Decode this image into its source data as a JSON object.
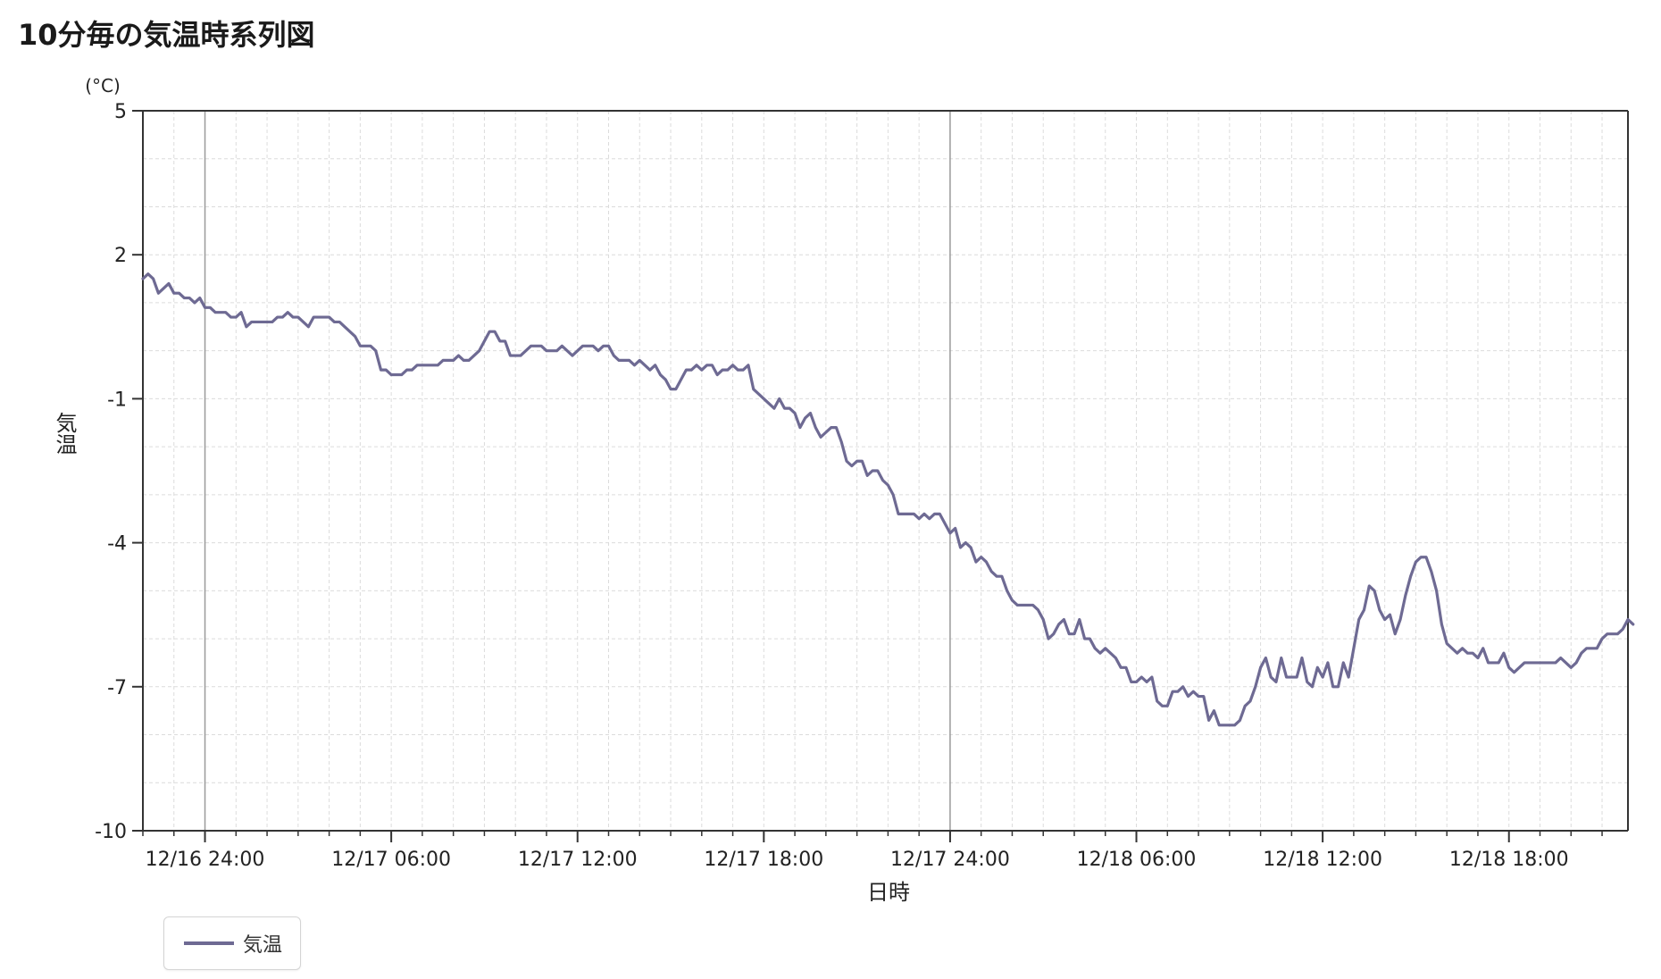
{
  "title": "10分毎の気温時系列図",
  "colors": {
    "line": "#6e6a93",
    "axis": "#333333",
    "grid_minor": "#dcdcdc",
    "grid_major": "#9a9a9a"
  },
  "chart_data": {
    "type": "line",
    "title": "10分毎の気温時系列図",
    "xlabel": "日時",
    "ylabel": "気温",
    "yunit": "(°C)",
    "ylim": [
      -10,
      5
    ],
    "yticks": [
      5,
      2,
      -1,
      -4,
      -7,
      -10
    ],
    "xlim": [
      "12/16 22:00",
      "12/18 21:50"
    ],
    "xtick_labels": [
      "12/16 24:00",
      "12/17 06:00",
      "12/17 12:00",
      "12/17 18:00",
      "12/17 24:00",
      "12/18 06:00",
      "12/18 12:00",
      "12/18 18:00"
    ],
    "major_vertical_gridlines": [
      "12/16 24:00",
      "12/17 24:00"
    ],
    "minor_gridline_interval": "1 hour",
    "grid": true,
    "legend_position": "bottom-left",
    "interval": "10 minutes",
    "series": [
      {
        "name": "気温",
        "x_start": "12/16 22:00",
        "values": [
          1.5,
          1.6,
          1.5,
          1.2,
          1.3,
          1.4,
          1.2,
          1.2,
          1.1,
          1.1,
          1.0,
          1.1,
          0.9,
          0.9,
          0.8,
          0.8,
          0.8,
          0.7,
          0.7,
          0.8,
          0.5,
          0.6,
          0.6,
          0.6,
          0.6,
          0.6,
          0.7,
          0.7,
          0.8,
          0.7,
          0.7,
          0.6,
          0.5,
          0.7,
          0.7,
          0.7,
          0.7,
          0.6,
          0.6,
          0.5,
          0.4,
          0.3,
          0.1,
          0.1,
          0.1,
          0.0,
          -0.4,
          -0.4,
          -0.5,
          -0.5,
          -0.5,
          -0.4,
          -0.4,
          -0.3,
          -0.3,
          -0.3,
          -0.3,
          -0.3,
          -0.2,
          -0.2,
          -0.2,
          -0.1,
          -0.2,
          -0.2,
          -0.1,
          0.0,
          0.2,
          0.4,
          0.4,
          0.2,
          0.2,
          -0.1,
          -0.1,
          -0.1,
          0.0,
          0.1,
          0.1,
          0.1,
          0.0,
          0.0,
          0.0,
          0.1,
          0.0,
          -0.1,
          0.0,
          0.1,
          0.1,
          0.1,
          0.0,
          0.1,
          0.1,
          -0.1,
          -0.2,
          -0.2,
          -0.2,
          -0.3,
          -0.2,
          -0.3,
          -0.4,
          -0.3,
          -0.5,
          -0.6,
          -0.8,
          -0.8,
          -0.6,
          -0.4,
          -0.4,
          -0.3,
          -0.4,
          -0.3,
          -0.3,
          -0.5,
          -0.4,
          -0.4,
          -0.3,
          -0.4,
          -0.4,
          -0.3,
          -0.8,
          -0.9,
          -1.0,
          -1.1,
          -1.2,
          -1.0,
          -1.2,
          -1.2,
          -1.3,
          -1.6,
          -1.4,
          -1.3,
          -1.6,
          -1.8,
          -1.7,
          -1.6,
          -1.6,
          -1.9,
          -2.3,
          -2.4,
          -2.3,
          -2.3,
          -2.6,
          -2.5,
          -2.5,
          -2.7,
          -2.8,
          -3.0,
          -3.4,
          -3.4,
          -3.4,
          -3.4,
          -3.5,
          -3.4,
          -3.5,
          -3.4,
          -3.4,
          -3.6,
          -3.8,
          -3.7,
          -4.1,
          -4.0,
          -4.1,
          -4.4,
          -4.3,
          -4.4,
          -4.6,
          -4.7,
          -4.7,
          -5.0,
          -5.2,
          -5.3,
          -5.3,
          -5.3,
          -5.3,
          -5.4,
          -5.6,
          -6.0,
          -5.9,
          -5.7,
          -5.6,
          -5.9,
          -5.9,
          -5.6,
          -6.0,
          -6.0,
          -6.2,
          -6.3,
          -6.2,
          -6.3,
          -6.4,
          -6.6,
          -6.6,
          -6.9,
          -6.9,
          -6.8,
          -6.9,
          -6.8,
          -7.3,
          -7.4,
          -7.4,
          -7.1,
          -7.1,
          -7.0,
          -7.2,
          -7.1,
          -7.2,
          -7.2,
          -7.7,
          -7.5,
          -7.8,
          -7.8,
          -7.8,
          -7.8,
          -7.7,
          -7.4,
          -7.3,
          -7.0,
          -6.6,
          -6.4,
          -6.8,
          -6.9,
          -6.4,
          -6.8,
          -6.8,
          -6.8,
          -6.4,
          -6.9,
          -7.0,
          -6.6,
          -6.8,
          -6.5,
          -7.0,
          -7.0,
          -6.5,
          -6.8,
          -6.2,
          -5.6,
          -5.4,
          -4.9,
          -5.0,
          -5.4,
          -5.6,
          -5.5,
          -5.9,
          -5.6,
          -5.1,
          -4.7,
          -4.4,
          -4.3,
          -4.3,
          -4.6,
          -5.0,
          -5.7,
          -6.1,
          -6.2,
          -6.3,
          -6.2,
          -6.3,
          -6.3,
          -6.4,
          -6.2,
          -6.5,
          -6.5,
          -6.5,
          -6.3,
          -6.6,
          -6.7,
          -6.6,
          -6.5,
          -6.5,
          -6.5,
          -6.5,
          -6.5,
          -6.5,
          -6.5,
          -6.4,
          -6.5,
          -6.6,
          -6.5,
          -6.3,
          -6.2,
          -6.2,
          -6.2,
          -6.0,
          -5.9,
          -5.9,
          -5.9,
          -5.8,
          -5.6,
          -5.7
        ]
      }
    ]
  }
}
